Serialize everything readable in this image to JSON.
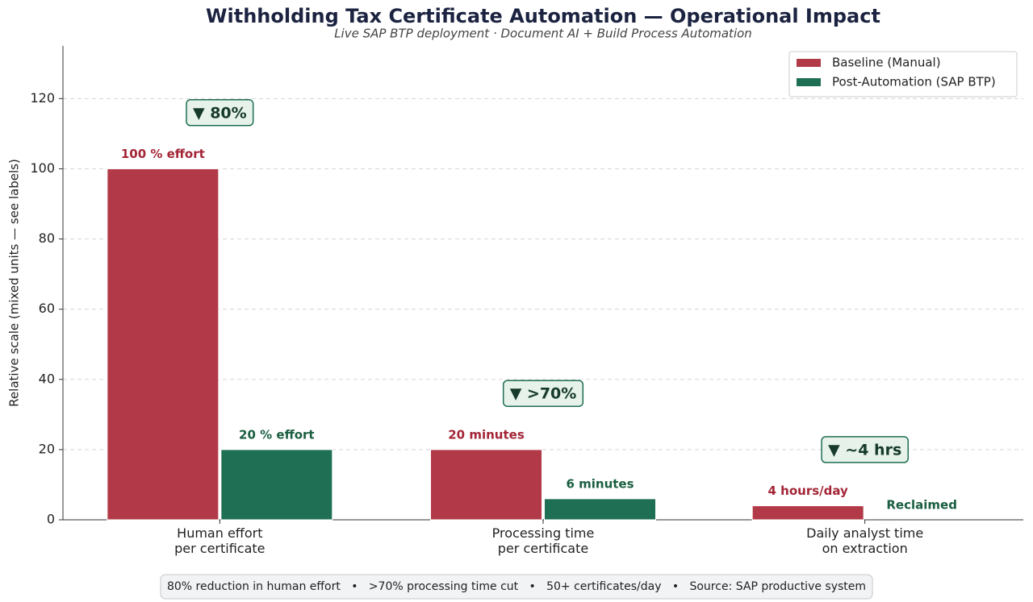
{
  "chart_data": {
    "type": "bar",
    "title": "Withholding Tax Certificate Automation — Operational Impact",
    "subtitle": "Live SAP BTP deployment · Document AI + Build Process Automation",
    "y_label": "Relative scale (mixed units — see labels)",
    "categories": [
      "Human effort\nper certificate",
      "Processing time\nper certificate",
      "Daily analyst time\non extraction"
    ],
    "series": [
      {
        "name": "Baseline (Manual)",
        "color": "#b23a48",
        "label_color": "#a32536",
        "values": [
          100,
          20,
          4
        ],
        "value_labels": [
          "100 % effort",
          "20 minutes",
          "4 hours/day"
        ]
      },
      {
        "name": "Post-Automation (SAP BTP)",
        "color": "#1f6f54",
        "label_color": "#1a5e40",
        "values": [
          20,
          6,
          0
        ],
        "value_labels": [
          "20 % effort",
          "6 minutes",
          "Reclaimed"
        ]
      }
    ],
    "annotations": [
      "▼ 80%",
      "▼ >70%",
      "▼ ~4 hrs"
    ],
    "footer": "80% reduction in human effort   •   >70% processing time cut   •   50+ certificates/day   •   Source: SAP productive system",
    "ylim": [
      0,
      135
    ],
    "yticks": [
      0,
      20,
      40,
      60,
      80,
      100,
      120
    ],
    "grid": true,
    "legend": "upper right"
  }
}
